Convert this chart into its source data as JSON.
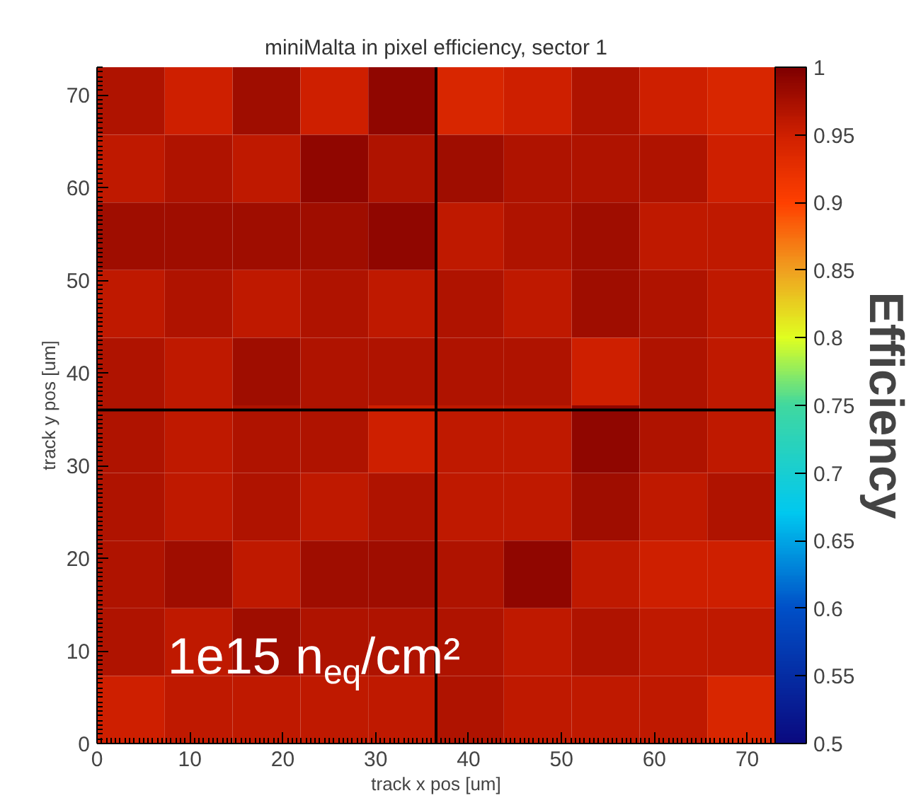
{
  "chart_data": {
    "type": "heatmap",
    "title": "miniMalta in pixel efficiency, sector 1",
    "xlabel": "track x pos [um]",
    "ylabel": "track y pos [um]",
    "clabel": "Efficiency",
    "xlim": [
      0,
      73
    ],
    "ylim": [
      0,
      73
    ],
    "xticks": [
      0,
      10,
      20,
      30,
      40,
      50,
      60,
      70
    ],
    "yticks": [
      0,
      10,
      20,
      30,
      40,
      50,
      60,
      70
    ],
    "clim": [
      0.5,
      1
    ],
    "cticks": [
      0.5,
      0.55,
      0.6,
      0.65,
      0.7,
      0.75,
      0.8,
      0.85,
      0.9,
      0.95,
      1
    ],
    "cells": [
      [
        0.97,
        0.95,
        0.98,
        0.95,
        0.99,
        0.94,
        0.95,
        0.97,
        0.95,
        0.94
      ],
      [
        0.96,
        0.97,
        0.96,
        0.99,
        0.97,
        0.98,
        0.97,
        0.97,
        0.97,
        0.95
      ],
      [
        0.98,
        0.98,
        0.98,
        0.98,
        0.99,
        0.96,
        0.97,
        0.98,
        0.96,
        0.96
      ],
      [
        0.96,
        0.97,
        0.96,
        0.97,
        0.96,
        0.97,
        0.96,
        0.98,
        0.97,
        0.96
      ],
      [
        0.97,
        0.96,
        0.98,
        0.97,
        0.97,
        0.97,
        0.97,
        0.95,
        0.97,
        0.96
      ],
      [
        0.97,
        0.96,
        0.97,
        0.97,
        0.95,
        0.96,
        0.96,
        0.99,
        0.97,
        0.96
      ],
      [
        0.97,
        0.96,
        0.97,
        0.96,
        0.97,
        0.96,
        0.96,
        0.98,
        0.96,
        0.97
      ],
      [
        0.97,
        0.98,
        0.96,
        0.98,
        0.98,
        0.97,
        0.99,
        0.96,
        0.95,
        0.95
      ],
      [
        0.97,
        0.96,
        0.98,
        0.97,
        0.97,
        0.97,
        0.96,
        0.97,
        0.96,
        0.96
      ],
      [
        0.95,
        0.96,
        0.96,
        0.96,
        0.96,
        0.97,
        0.96,
        0.96,
        0.96,
        0.94
      ]
    ],
    "ref_lines": [
      {
        "axis": "x",
        "value": 36.5,
        "color": "#000000"
      },
      {
        "axis": "y",
        "value": 36,
        "color": "#000000"
      }
    ],
    "annotations": [
      "1e15 n$_{eq}$/cm²"
    ],
    "grid": false
  }
}
